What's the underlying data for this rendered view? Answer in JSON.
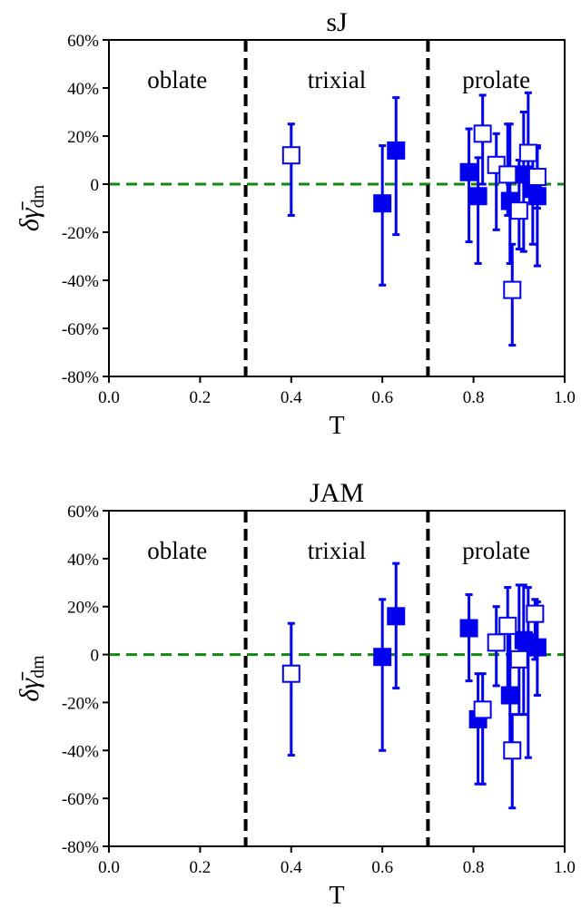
{
  "chart_data": [
    {
      "type": "scatter",
      "title": "sJ",
      "xlabel": "T",
      "ylabel_main": "δγ̄",
      "ylabel_sub": "dm",
      "xlim": [
        0.0,
        1.0
      ],
      "ylim": [
        -80,
        60
      ],
      "xticks": [
        "0.0",
        "0.2",
        "0.4",
        "0.6",
        "0.8",
        "1.0"
      ],
      "yticks": [
        "60%",
        "40%",
        "20%",
        "0",
        "-20%",
        "-40%",
        "-60%",
        "-80%"
      ],
      "ytick_values": [
        60,
        40,
        20,
        0,
        -20,
        -40,
        -60,
        -80
      ],
      "xtick_values": [
        0.0,
        0.2,
        0.4,
        0.6,
        0.8,
        1.0
      ],
      "dividers": [
        0.3,
        0.7
      ],
      "reference_line": 0,
      "regions": [
        {
          "label": "oblate",
          "x": 0.15
        },
        {
          "label": "trixial",
          "x": 0.5
        },
        {
          "label": "prolate",
          "x": 0.85
        }
      ],
      "series": [
        {
          "filled": true,
          "points": [
            {
              "x": 0.6,
              "y": -8,
              "lo": -42,
              "hi": 16
            },
            {
              "x": 0.63,
              "y": 14,
              "lo": -21,
              "hi": 36
            },
            {
              "x": 0.79,
              "y": 5,
              "lo": -24,
              "hi": 23
            },
            {
              "x": 0.81,
              "y": -5,
              "lo": -33,
              "hi": 11
            },
            {
              "x": 0.88,
              "y": -7,
              "lo": -33,
              "hi": 25
            },
            {
              "x": 0.91,
              "y": 4,
              "lo": -28,
              "hi": 30
            },
            {
              "x": 0.93,
              "y": -2,
              "lo": -25,
              "hi": 14
            },
            {
              "x": 0.94,
              "y": -5,
              "lo": -34,
              "hi": 16
            }
          ]
        },
        {
          "filled": false,
          "points": [
            {
              "x": 0.4,
              "y": 12,
              "lo": -13,
              "hi": 25
            },
            {
              "x": 0.82,
              "y": 21,
              "lo": 0,
              "hi": 37
            },
            {
              "x": 0.85,
              "y": 8,
              "lo": -19,
              "hi": 21
            },
            {
              "x": 0.875,
              "y": 4,
              "lo": -13,
              "hi": 25
            },
            {
              "x": 0.885,
              "y": -44,
              "lo": -67,
              "hi": -25
            },
            {
              "x": 0.9,
              "y": -11,
              "lo": -27,
              "hi": 10
            },
            {
              "x": 0.92,
              "y": 13,
              "lo": -5,
              "hi": 38
            },
            {
              "x": 0.94,
              "y": 3,
              "lo": -10,
              "hi": 15
            }
          ]
        }
      ]
    },
    {
      "type": "scatter",
      "title": "JAM",
      "xlabel": "T",
      "ylabel_main": "δγ̄",
      "ylabel_sub": "dm",
      "xlim": [
        0.0,
        1.0
      ],
      "ylim": [
        -80,
        60
      ],
      "xticks": [
        "0.0",
        "0.2",
        "0.4",
        "0.6",
        "0.8",
        "1.0"
      ],
      "yticks": [
        "60%",
        "40%",
        "20%",
        "0",
        "-20%",
        "-40%",
        "-60%",
        "-80%"
      ],
      "ytick_values": [
        60,
        40,
        20,
        0,
        -20,
        -40,
        -60,
        -80
      ],
      "xtick_values": [
        0.0,
        0.2,
        0.4,
        0.6,
        0.8,
        1.0
      ],
      "dividers": [
        0.3,
        0.7
      ],
      "reference_line": 0,
      "regions": [
        {
          "label": "oblate",
          "x": 0.15
        },
        {
          "label": "trixial",
          "x": 0.5
        },
        {
          "label": "prolate",
          "x": 0.85
        }
      ],
      "series": [
        {
          "filled": true,
          "points": [
            {
              "x": 0.6,
              "y": -1,
              "lo": -40,
              "hi": 23
            },
            {
              "x": 0.63,
              "y": 16,
              "lo": -14,
              "hi": 38
            },
            {
              "x": 0.79,
              "y": 11,
              "lo": -11,
              "hi": 25
            },
            {
              "x": 0.81,
              "y": -27,
              "lo": -54,
              "hi": -8
            },
            {
              "x": 0.88,
              "y": -17,
              "lo": -40,
              "hi": 13
            },
            {
              "x": 0.91,
              "y": 6,
              "lo": -25,
              "hi": 29
            },
            {
              "x": 0.92,
              "y": 5,
              "lo": -43,
              "hi": 28
            },
            {
              "x": 0.94,
              "y": 3,
              "lo": -17,
              "hi": 22
            }
          ]
        },
        {
          "filled": false,
          "points": [
            {
              "x": 0.4,
              "y": -8,
              "lo": -42,
              "hi": 13
            },
            {
              "x": 0.82,
              "y": -23,
              "lo": -54,
              "hi": -8
            },
            {
              "x": 0.85,
              "y": 5,
              "lo": -13,
              "hi": 20
            },
            {
              "x": 0.875,
              "y": 12,
              "lo": -17,
              "hi": 28
            },
            {
              "x": 0.885,
              "y": -40,
              "lo": -64,
              "hi": -25
            },
            {
              "x": 0.9,
              "y": -2,
              "lo": -25,
              "hi": 29
            },
            {
              "x": 0.935,
              "y": 17,
              "lo": -2,
              "hi": 23
            }
          ]
        }
      ]
    }
  ],
  "colors": {
    "markers": "#0000ee",
    "reference_line": "#118811",
    "dividers": "#000000"
  }
}
